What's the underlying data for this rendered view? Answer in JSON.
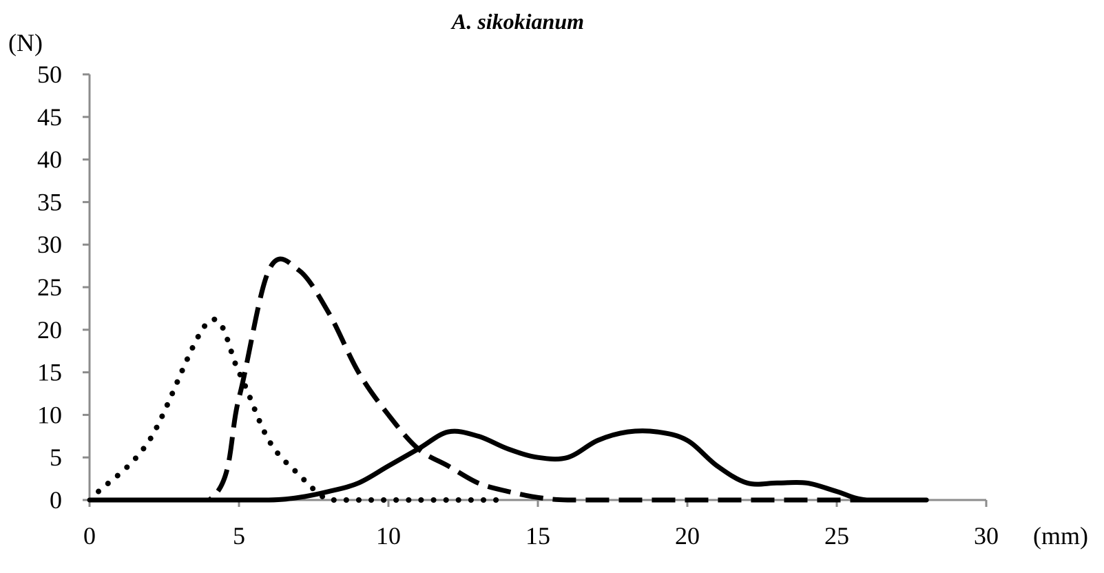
{
  "chart_data": {
    "type": "line",
    "title": "A. sikokianum",
    "ylabel": "(N)",
    "xlabel": "(mm)",
    "xlim": [
      0,
      30
    ],
    "ylim": [
      0,
      50
    ],
    "xticks": [
      "0",
      "5",
      "10",
      "15",
      "20",
      "25",
      "30"
    ],
    "yticks": [
      "0",
      "5",
      "10",
      "15",
      "20",
      "25",
      "30",
      "35",
      "40",
      "45",
      "50"
    ],
    "grid": false,
    "legend": "none",
    "series": [
      {
        "style": "dotted",
        "color": "#000000",
        "x": [
          0.3,
          2,
          4,
          5,
          6,
          7,
          8,
          9,
          10,
          12,
          14
        ],
        "y": [
          1,
          7,
          21,
          15,
          7,
          3,
          0,
          0,
          0,
          0,
          0
        ]
      },
      {
        "style": "dashed",
        "color": "#000000",
        "x": [
          0,
          4,
          5,
          6,
          7,
          8,
          9,
          10,
          11,
          12,
          13,
          14,
          15,
          16,
          18,
          20,
          22,
          24,
          26,
          28
        ],
        "y": [
          0,
          0,
          12,
          27,
          27,
          22,
          15,
          10,
          6,
          4,
          2,
          1,
          0.3,
          0,
          0,
          0,
          0,
          0,
          0,
          0
        ]
      },
      {
        "style": "solid",
        "color": "#000000",
        "x": [
          0,
          2,
          4,
          6,
          7,
          8,
          9,
          10,
          11,
          12,
          13,
          14,
          15,
          16,
          17,
          18,
          19,
          20,
          21,
          22,
          23,
          24,
          25,
          26,
          28
        ],
        "y": [
          0,
          0,
          0,
          0,
          0.3,
          1,
          2,
          4,
          6,
          8,
          7.5,
          6,
          5,
          5,
          7,
          8,
          8,
          7,
          4,
          2,
          2,
          2,
          1,
          0,
          0
        ]
      }
    ]
  }
}
